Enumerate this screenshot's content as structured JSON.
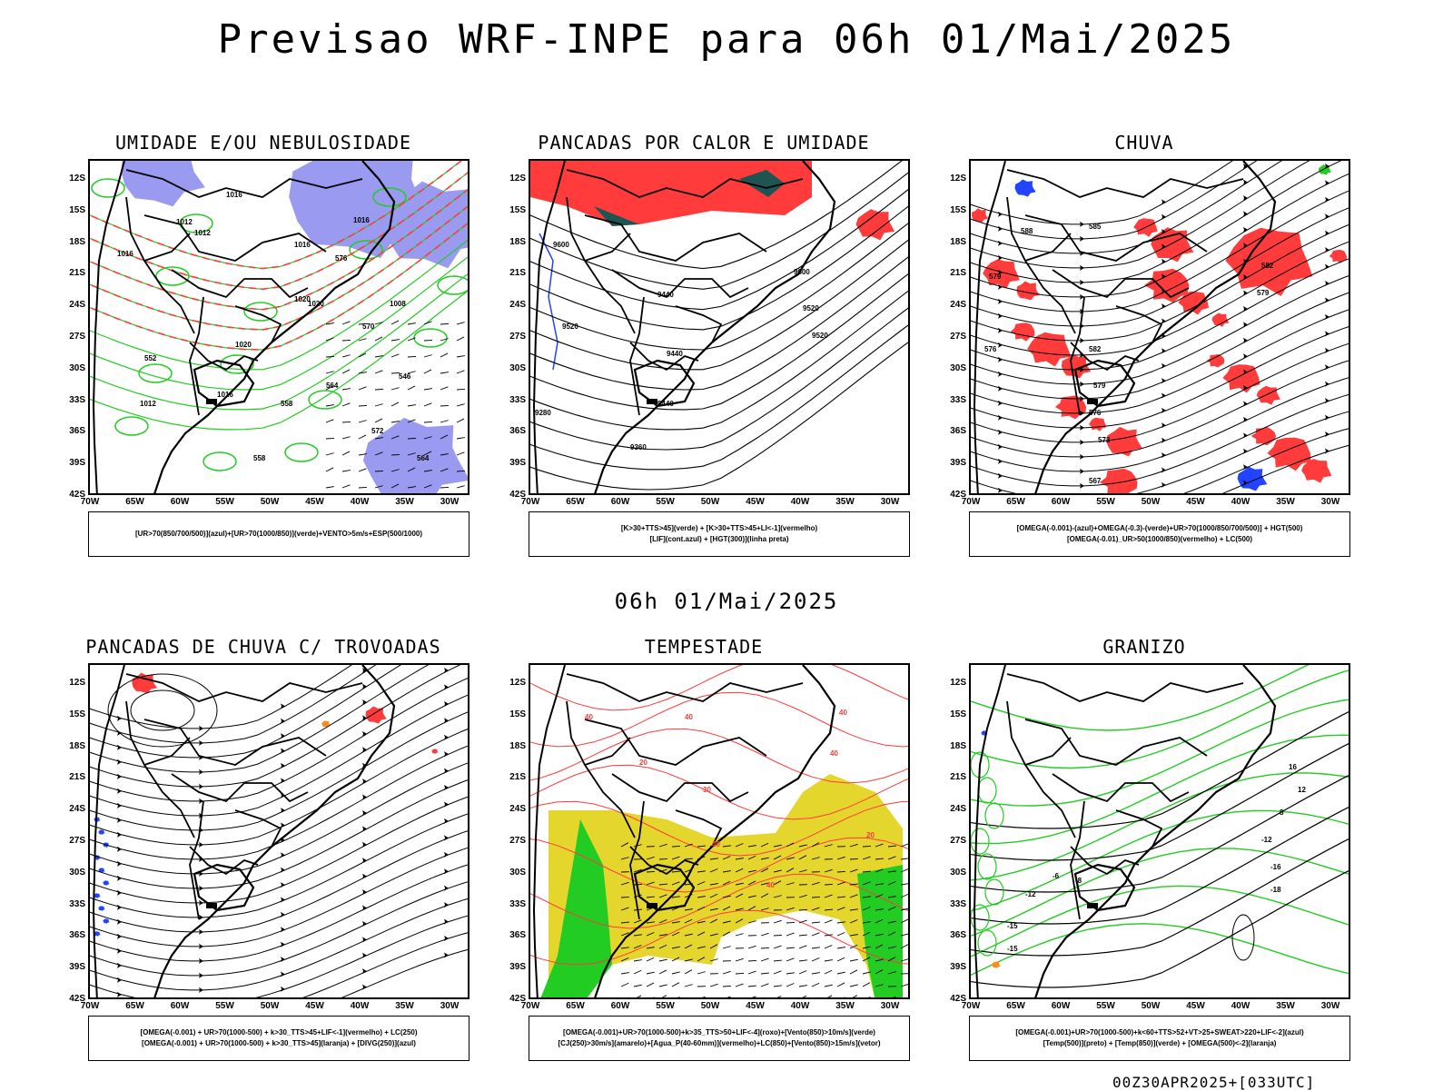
{
  "header": {
    "title": "Previsao WRF-INPE  para 06h 01/Mai/2025",
    "mid_date": "06h 01/Mai/2025",
    "run_stamp": "00Z30APR2025+[033UTC]"
  },
  "axes": {
    "lat_ticks": [
      "12S",
      "15S",
      "18S",
      "21S",
      "24S",
      "27S",
      "30S",
      "33S",
      "36S",
      "39S",
      "42S"
    ],
    "lon_ticks": [
      "70W",
      "65W",
      "60W",
      "55W",
      "50W",
      "45W",
      "40W",
      "35W",
      "30W"
    ]
  },
  "colors": {
    "red": "#ff3b3b",
    "green": "#22cc22",
    "blue": "#2244ff",
    "lavender": "#9a9af0",
    "yellow": "#e5d62e",
    "darkteal": "#1e5454",
    "orange": "#ff8c1a"
  },
  "panels": [
    {
      "title": "UMIDADE E/OU NEBULOSIDADE",
      "legend": [
        "[UR>70(850/700/500)](azul)+[UR>70(1000/850)](verde)+VENTO>5m/s+ESP(500/1000)"
      ],
      "contour_labels": [
        "1012",
        "1012",
        "1016",
        "1016",
        "1016",
        "1020",
        "1020",
        "1020",
        "1016",
        "1012",
        "1008",
        "1016",
        "576",
        "570",
        "564",
        "558",
        "552",
        "546",
        "572",
        "564",
        "558"
      ]
    },
    {
      "title": "PANCADAS POR CALOR E UMIDADE",
      "legend": [
        "[K>30+TTS>45](verde)  +  [K>30+TTS>45+LI<-1](vermelho)",
        "[LIF](cont.azul)  +  [HGT(300)](linha preta)"
      ],
      "contour_labels": [
        "9600",
        "9600",
        "9520",
        "9520",
        "9440",
        "9440",
        "9440",
        "9360",
        "9520",
        "9280"
      ]
    },
    {
      "title": "CHUVA",
      "legend": [
        "[OMEGA(-0.001)-(azul)+OMEGA(-0.3)-(verde)+UR>70(1000/850/700/500)]  +  HGT(500)",
        "[OMEGA(-0.01)_UR>50(1000/850)(vermelho)  +  LC(500)"
      ],
      "contour_labels": [
        "585",
        "582",
        "579",
        "582",
        "579",
        "576",
        "573",
        "567",
        "579",
        "576",
        "588"
      ]
    },
    {
      "title": "PANCADAS DE CHUVA C/ TROVOADAS",
      "legend": [
        "[OMEGA(-0.001)  +  UR>70(1000-500)  +  k>30_TTS>45+LIF<-1](vermelho)  +  LC(250)",
        "[OMEGA(-0.001)  +  UR>70(1000-500)  +  k>30_TTS>45](laranja)  +  [DIVG(250)](azul)"
      ],
      "contour_labels": []
    },
    {
      "title": "TEMPESTADE",
      "legend": [
        "[OMEGA(-0.001)+UR>70(1000-500)+k>35_TTS>50+LIF<-4](roxo)+[Vento(850)>10m/s](verde)",
        "[CJ(250)>30m/s](amarelo)+[Agua_P(40-60mm)](vermelho)+LC(850)+[Vento(850)>15m/s](vetor)"
      ],
      "contour_labels": [
        "40",
        "40",
        "40",
        "40",
        "20",
        "30",
        "40",
        "20",
        "40"
      ]
    },
    {
      "title": "GRANIZO",
      "legend": [
        "[OMEGA(-0.001)+UR>70(1000-500)+k<60+TTS>52+VT>25+SWEAT>220+LIF<-2](azul)",
        "[Temp(500)](preto)  +  [Temp(850)](verde)  +  [OMEGA(500)<-2](laranja)"
      ],
      "contour_labels": [
        "-12",
        "-16",
        "-18",
        "-6",
        "-8",
        "-12",
        "-15",
        "-15",
        "16",
        "12",
        "8"
      ]
    }
  ]
}
